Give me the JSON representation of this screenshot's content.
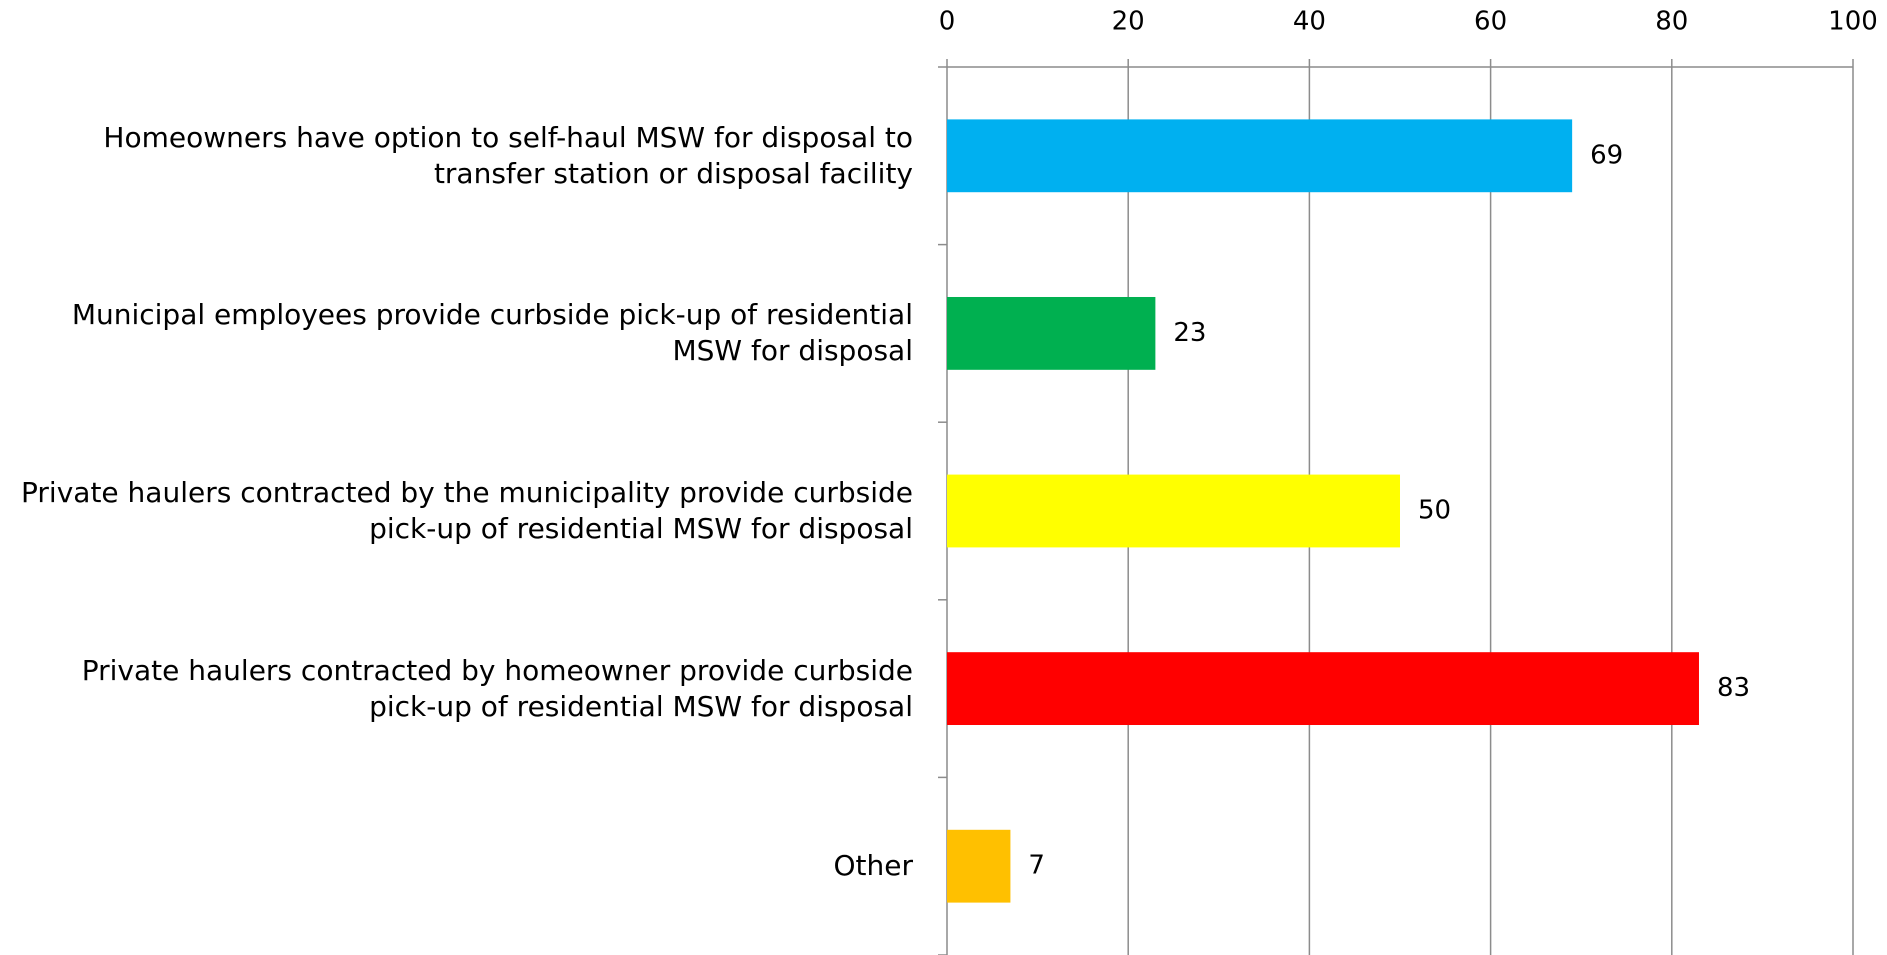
{
  "chart_data": {
    "type": "bar",
    "orientation": "horizontal",
    "categories": [
      "Homeowners have option to self-haul MSW for disposal to transfer station or disposal facility",
      "Municipal employees provide curbside pick-up of residential MSW for disposal",
      "Private haulers contracted by the municipality provide curbside pick-up of residential MSW for disposal",
      "Private haulers contracted by homeowner provide curbside pick-up of residential MSW for disposal",
      "Other"
    ],
    "values": [
      69,
      23,
      50,
      83,
      7
    ],
    "colors": [
      "#00b0f0",
      "#00b050",
      "#ffff00",
      "#ff0000",
      "#ffc000"
    ],
    "xlim": [
      0,
      100
    ],
    "xticks": [
      0,
      20,
      40,
      60,
      80,
      100
    ],
    "grid": true
  }
}
